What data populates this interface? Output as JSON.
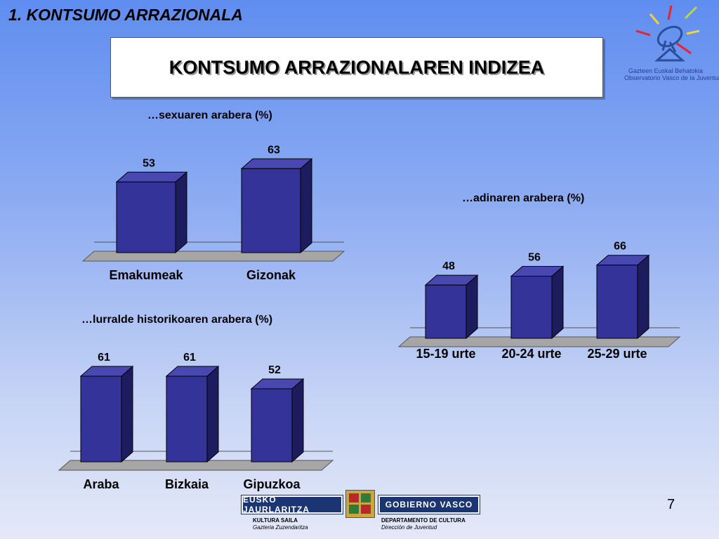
{
  "slide": {
    "section_title": "1. KONTSUMO ARRAZIONALA",
    "main_title": "KONTSUMO ARRAZIONALAREN INDIZEA",
    "page_number": "7"
  },
  "logo": {
    "line1": "Gazteen Euskal Behatokia",
    "line2": "Observatorio Vasco de la Juventud"
  },
  "footer": {
    "left_bar": "EUSKO JAURLARITZA",
    "right_bar": "GOBIERNO VASCO",
    "left_dept": "KULTURA SAILA",
    "left_sub": "Gazteria Zuzendaritza",
    "right_dept": "DEPARTAMENTO DE CULTURA",
    "right_sub": "Dirección de Juventud"
  },
  "colors": {
    "bar_front": "#333399",
    "bar_side": "#1c1c5e",
    "bar_top": "#4848b0",
    "floor": "#a6a6a6"
  },
  "chart_data": [
    {
      "type": "bar",
      "title": "…sexuaren arabera (%)",
      "categories": [
        "Emakumeak",
        "Gizonak"
      ],
      "values": [
        53,
        63
      ],
      "ylim": [
        0,
        70
      ],
      "grid": false
    },
    {
      "type": "bar",
      "title": "…adinaren arabera (%)",
      "categories": [
        "15-19 urte",
        "20-24 urte",
        "25-29 urte"
      ],
      "values": [
        48,
        56,
        66
      ],
      "ylim": [
        0,
        70
      ],
      "grid": false
    },
    {
      "type": "bar",
      "title": "…lurralde historikoaren arabera (%)",
      "categories": [
        "Araba",
        "Bizkaia",
        "Gipuzkoa"
      ],
      "values": [
        61,
        61,
        52
      ],
      "ylim": [
        0,
        70
      ],
      "grid": false
    }
  ]
}
